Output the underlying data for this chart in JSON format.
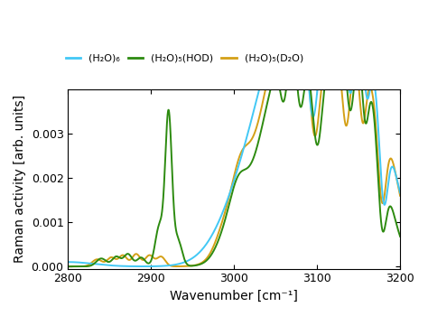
{
  "xlabel": "Wavenumber [cm⁻¹]",
  "ylabel": "Raman activity [arb. units]",
  "xlim": [
    2800,
    3200
  ],
  "ylim": [
    -5e-05,
    0.004
  ],
  "yticks": [
    0.0,
    0.001,
    0.002,
    0.003
  ],
  "xticks": [
    2800,
    2900,
    3000,
    3100,
    3200
  ],
  "colors": {
    "cyan": "#42C8F5",
    "green": "#2D8B10",
    "orange": "#D4A017"
  },
  "legend": [
    {
      "label": "(H₂O)₆",
      "color": "#42C8F5"
    },
    {
      "label": "(H₂O)₅(HOD)",
      "color": "#2D8B10"
    },
    {
      "label": "(H₂O)₅(D₂O)",
      "color": "#D4A017"
    }
  ],
  "line_width": 1.4
}
